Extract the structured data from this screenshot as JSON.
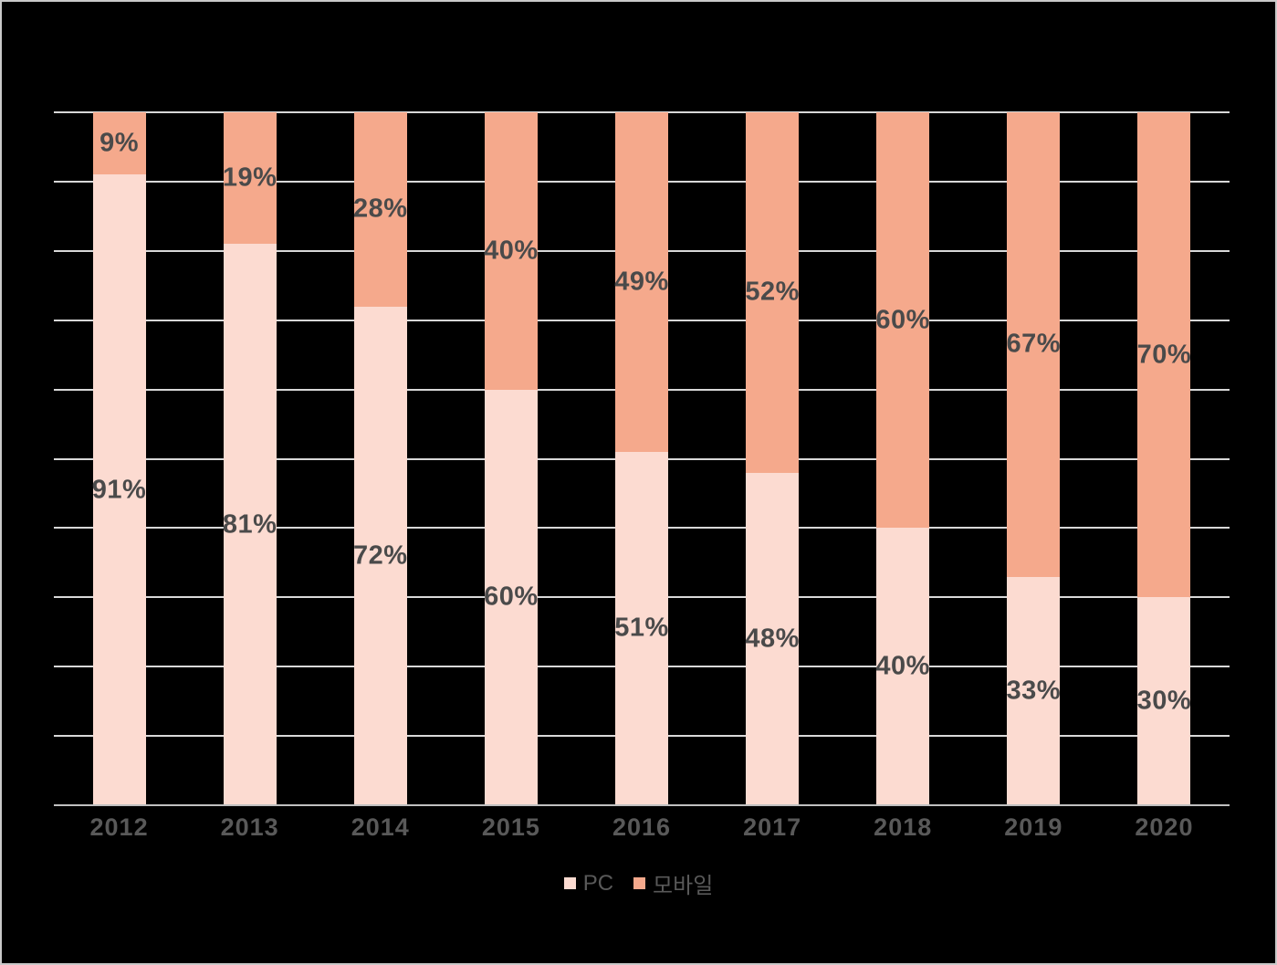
{
  "frame": {
    "background": "#000000",
    "border_color": "#C9C9C9"
  },
  "chart_data": {
    "type": "bar",
    "stacked": true,
    "orientation": "vertical",
    "title": "",
    "xlabel": "",
    "ylabel": "",
    "categories": [
      "2012",
      "2013",
      "2014",
      "2015",
      "2016",
      "2017",
      "2018",
      "2019",
      "2020"
    ],
    "series": [
      {
        "name": "PC",
        "color": "#FCDBD1",
        "values": [
          91,
          81,
          72,
          60,
          51,
          48,
          40,
          33,
          30
        ]
      },
      {
        "name": "모바일",
        "color": "#F5A98C",
        "values": [
          9,
          19,
          28,
          40,
          49,
          52,
          60,
          67,
          70
        ]
      }
    ],
    "value_suffix": "%",
    "ylim": [
      0,
      100
    ],
    "gridline_interval": 10,
    "grid": true,
    "legend_position": "bottom"
  },
  "styles": {
    "gridline_color": "#D8D8D8",
    "axis_line_color": "#C0C0C0",
    "data_label_color": "#4A4A4A",
    "category_label_color": "#595959",
    "legend_text_color": "#595959"
  }
}
